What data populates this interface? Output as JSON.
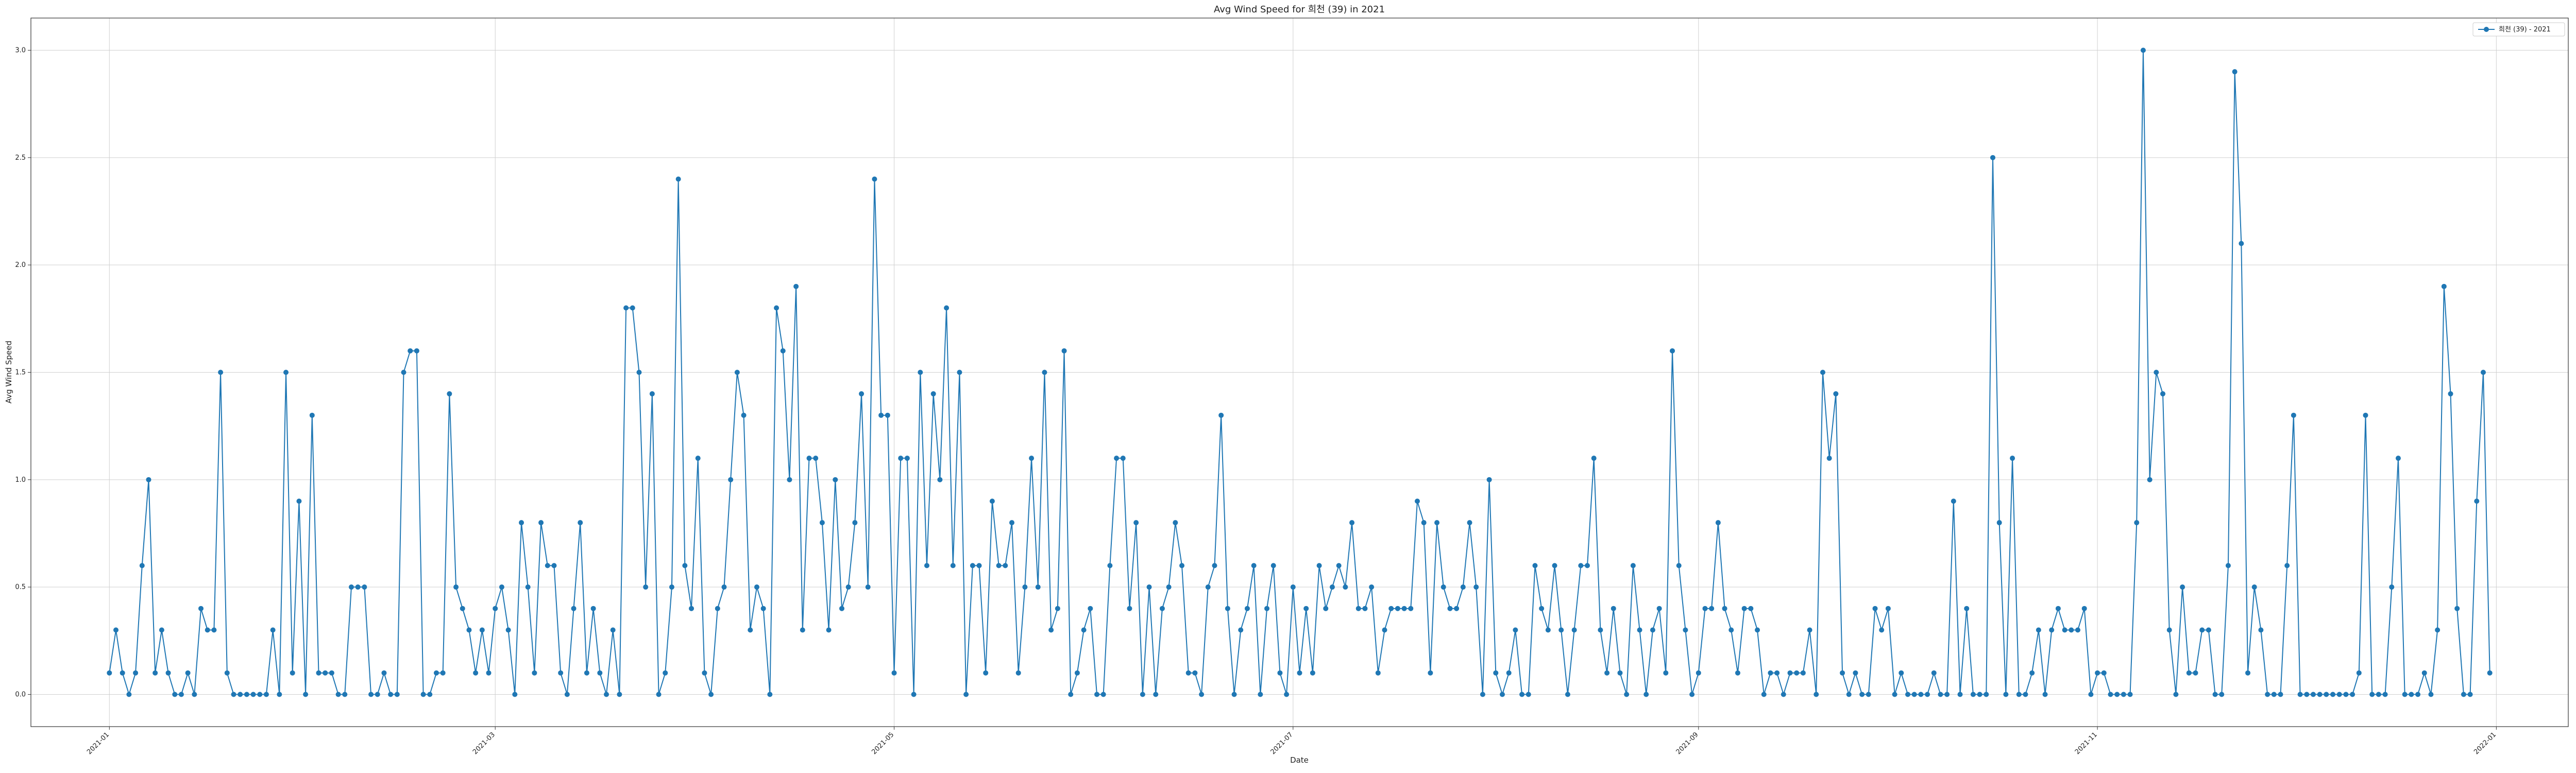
{
  "chart_data": {
    "type": "line",
    "title": "Avg Wind Speed for 희천 (39) in 2021",
    "xlabel": "Date",
    "ylabel": "Avg Wind Speed",
    "x_range": [
      "2020-12-20",
      "2022-01-12"
    ],
    "ylim": [
      -0.15,
      3.15
    ],
    "grid": true,
    "legend_position": "top-right",
    "x_ticks": [
      "2021-01",
      "2021-03",
      "2021-05",
      "2021-07",
      "2021-09",
      "2021-11",
      "2022-01"
    ],
    "x_tick_dates": [
      "2021-01-01",
      "2021-03-01",
      "2021-05-01",
      "2021-07-01",
      "2021-09-01",
      "2021-11-01",
      "2022-01-01"
    ],
    "y_ticks": [
      "0.0",
      "0.5",
      "1.0",
      "1.5",
      "2.0",
      "2.5",
      "3.0"
    ],
    "y_tick_values": [
      0,
      0.5,
      1.0,
      1.5,
      2.0,
      2.5,
      3.0
    ],
    "series": [
      {
        "name": "희천 (39) - 2021",
        "color": "#1f77b4",
        "start_date": "2021-01-01",
        "values": [
          0.1,
          0.3,
          0.1,
          0,
          0.1,
          0.6,
          1.0,
          0.1,
          0.3,
          0.1,
          0,
          0,
          0.1,
          0,
          0.4,
          0.3,
          0.3,
          1.5,
          0.1,
          0,
          0,
          0,
          0,
          0,
          0,
          0.3,
          0,
          1.5,
          0.1,
          0.9,
          0,
          1.3,
          0.1,
          0.1,
          0.1,
          0,
          0,
          0.5,
          0.5,
          0.5,
          0,
          0,
          0.1,
          0,
          0,
          1.5,
          1.6,
          1.6,
          0,
          0,
          0.1,
          0.1,
          1.4,
          0.5,
          0.4,
          0.3,
          0.1,
          0.3,
          0.1,
          0.4,
          0.5,
          0.3,
          0,
          0.8,
          0.5,
          0.1,
          0.8,
          0.6,
          0.6,
          0.1,
          0,
          0.4,
          0.8,
          0.1,
          0.4,
          0.1,
          0,
          0.3,
          0,
          1.8,
          1.8,
          1.5,
          0.5,
          1.4,
          0,
          0.1,
          0.5,
          2.4,
          0.6,
          0.4,
          1.1,
          0.1,
          0,
          0.4,
          0.5,
          1.0,
          1.5,
          1.3,
          0.3,
          0.5,
          0.4,
          0,
          1.8,
          1.6,
          1.0,
          1.9,
          0.3,
          1.1,
          1.1,
          0.8,
          0.3,
          1.0,
          0.4,
          0.5,
          0.8,
          1.4,
          0.5,
          2.4,
          1.3,
          1.3,
          0.1,
          1.1,
          1.1,
          0,
          1.5,
          0.6,
          1.4,
          1.0,
          1.8,
          0.6,
          1.5,
          0,
          0.6,
          0.6,
          0.1,
          0.9,
          0.6,
          0.6,
          0.8,
          0.1,
          0.5,
          1.1,
          0.5,
          1.5,
          0.3,
          0.4,
          1.6,
          0,
          0.1,
          0.3,
          0.4,
          0,
          0,
          0.6,
          1.1,
          1.1,
          0.4,
          0.8,
          0,
          0.5,
          0,
          0.4,
          0.5,
          0.8,
          0.6,
          0.1,
          0.1,
          0,
          0.5,
          0.6,
          1.3,
          0.4,
          0,
          0.3,
          0.4,
          0.6,
          0,
          0.4,
          0.6,
          0.1,
          0,
          0.5,
          0.1,
          0.4,
          0.1,
          0.6,
          0.4,
          0.5,
          0.6,
          0.5,
          0.8,
          0.4,
          0.4,
          0.5,
          0.1,
          0.3,
          0.4,
          0.4,
          0.4,
          0.4,
          0.9,
          0.8,
          0.1,
          0.8,
          0.5,
          0.4,
          0.4,
          0.5,
          0.8,
          0.5,
          0,
          1.0,
          0.1,
          0,
          0.1,
          0.3,
          0,
          0,
          0.6,
          0.4,
          0.3,
          0.6,
          0.3,
          0,
          0.3,
          0.6,
          0.6,
          1.1,
          0.3,
          0.1,
          0.4,
          0.1,
          0,
          0.6,
          0.3,
          0,
          0.3,
          0.4,
          0.1,
          1.6,
          0.6,
          0.3,
          0,
          0.1,
          0.4,
          0.4,
          0.8,
          0.4,
          0.3,
          0.1,
          0.4,
          0.4,
          0.3,
          0,
          0.1,
          0.1,
          0,
          0.1,
          0.1,
          0.1,
          0.3,
          0,
          1.5,
          1.1,
          1.4,
          0.1,
          0,
          0.1,
          0,
          0,
          0.4,
          0.3,
          0.4,
          0,
          0.1,
          0,
          0,
          0,
          0,
          0.1,
          0,
          0,
          0.9,
          0,
          0.4,
          0,
          0,
          0,
          2.5,
          0.8,
          0,
          1.1,
          0,
          0,
          0.1,
          0.3,
          0,
          0.3,
          0.4,
          0.3,
          0.3,
          0.3,
          0.4,
          0,
          0.1,
          0.1,
          0,
          0,
          0,
          0,
          0.8,
          3.0,
          1.0,
          1.5,
          1.4,
          0.3,
          0,
          0.5,
          0.1,
          0.1,
          0.3,
          0.3,
          0,
          0,
          0.6,
          2.9,
          2.1,
          0.1,
          0.5,
          0.3,
          0,
          0,
          0,
          0.6,
          1.3,
          0,
          0,
          0,
          0,
          0,
          0,
          0,
          0,
          0,
          0.1,
          1.3,
          0,
          0,
          0,
          0.5,
          1.1,
          0,
          0,
          0,
          0.1,
          0,
          0.3,
          1.9,
          1.4,
          0.4,
          0,
          0,
          0.9,
          1.5,
          0.1
        ]
      }
    ]
  }
}
